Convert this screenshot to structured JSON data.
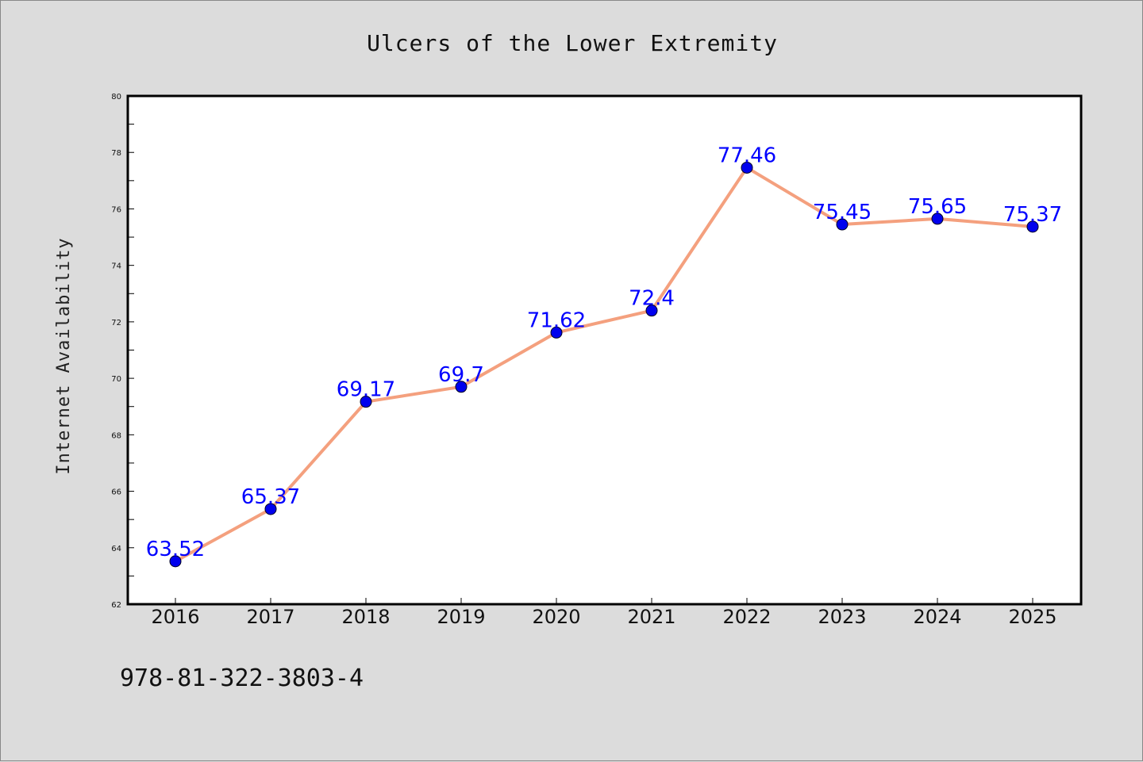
{
  "chart_data": {
    "type": "line",
    "title": "Ulcers of the Lower Extremity",
    "xlabel": "",
    "ylabel": "Internet Availability",
    "categories": [
      "2016",
      "2017",
      "2018",
      "2019",
      "2020",
      "2021",
      "2022",
      "2023",
      "2024",
      "2025"
    ],
    "series": [
      {
        "values": [
          63.52,
          65.37,
          69.17,
          69.7,
          71.62,
          72.4,
          77.46,
          75.45,
          75.65,
          75.37
        ],
        "labels": [
          "63.52",
          "65.37",
          "69.17",
          "69.7",
          "71.62",
          "72.4",
          "77.46",
          "75.45",
          "75.65",
          "75.37"
        ],
        "line_color": "#f4a07e",
        "marker_color": "#0000ee"
      }
    ],
    "ylim": [
      62,
      80
    ],
    "yticks": [
      "62",
      "64",
      "66",
      "68",
      "70",
      "72",
      "74",
      "76",
      "78",
      "80"
    ],
    "grid": false,
    "legend": "none"
  },
  "footer_text": "978-81-322-3803-4",
  "colors": {
    "background": "#dcdcdc",
    "plot_background": "#ffffff",
    "data_label": "#0000ff"
  }
}
